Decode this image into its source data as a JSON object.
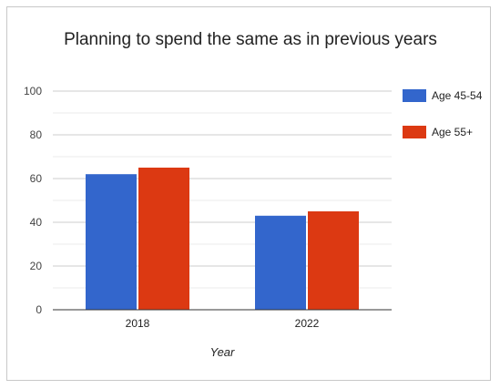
{
  "chart_data": {
    "type": "bar",
    "title": "Planning to spend the same as in previous years",
    "categories": [
      "2018",
      "2022"
    ],
    "series": [
      {
        "name": "Age 45-54",
        "values": [
          62,
          43
        ]
      },
      {
        "name": "Age 55+",
        "values": [
          65,
          45
        ]
      }
    ],
    "xlabel": "Year",
    "ylabel": "",
    "ylim": [
      0,
      100
    ],
    "yticks": [
      0,
      20,
      40,
      60,
      80,
      100
    ],
    "grid": true,
    "legend": "right",
    "colors": [
      "#3366cc",
      "#dc3912"
    ]
  }
}
